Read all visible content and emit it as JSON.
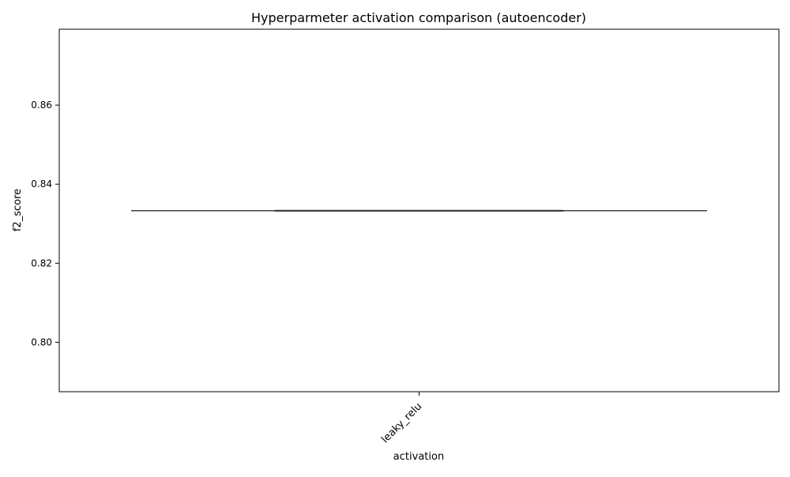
{
  "chart_data": {
    "type": "box",
    "title": "Hyperparmeter activation comparison (autoencoder)",
    "xlabel": "activation",
    "ylabel": "f2_score",
    "categories": [
      "leaky_relu"
    ],
    "boxes": [
      {
        "category": "leaky_relu",
        "min": 0.8333,
        "q1": 0.8333,
        "median": 0.8333,
        "q3": 0.8333,
        "max": 0.8333
      }
    ],
    "ylim": [
      0.7875,
      0.8792
    ],
    "yticks": [
      0.8,
      0.82,
      0.84,
      0.86
    ],
    "ytick_labels": [
      "0.80",
      "0.82",
      "0.84",
      "0.86"
    ],
    "grid": false,
    "legend": "none",
    "colors": {
      "box_line": "#3f3f3f",
      "axis": "#000000"
    }
  }
}
